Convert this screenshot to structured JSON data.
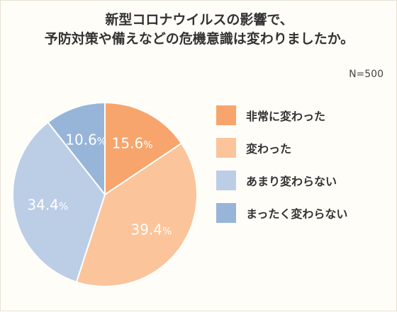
{
  "title": {
    "line1": "新型コロナウイルスの影響で、",
    "line2": "予防対策や備えなどの危機意識は変わりましたか。"
  },
  "sample_size": "N=500",
  "chart_data": {
    "type": "pie",
    "title": "新型コロナウイルスの影響で、予防対策や備えなどの危機意識は変わりましたか。",
    "unit": "%",
    "start_angle_deg": 0,
    "direction": "clockwise",
    "legend_position": "right",
    "slices": [
      {
        "label": "非常に変わった",
        "value": 15.6,
        "display": "15.6",
        "color": "#f7a56c"
      },
      {
        "label": "変わった",
        "value": 39.4,
        "display": "39.4",
        "color": "#fbc49a"
      },
      {
        "label": "あまり変わらない",
        "value": 34.4,
        "display": "34.4",
        "color": "#bccde6"
      },
      {
        "label": "まったく変わらない",
        "value": 10.6,
        "display": "10.6",
        "color": "#96b5d8"
      }
    ]
  }
}
